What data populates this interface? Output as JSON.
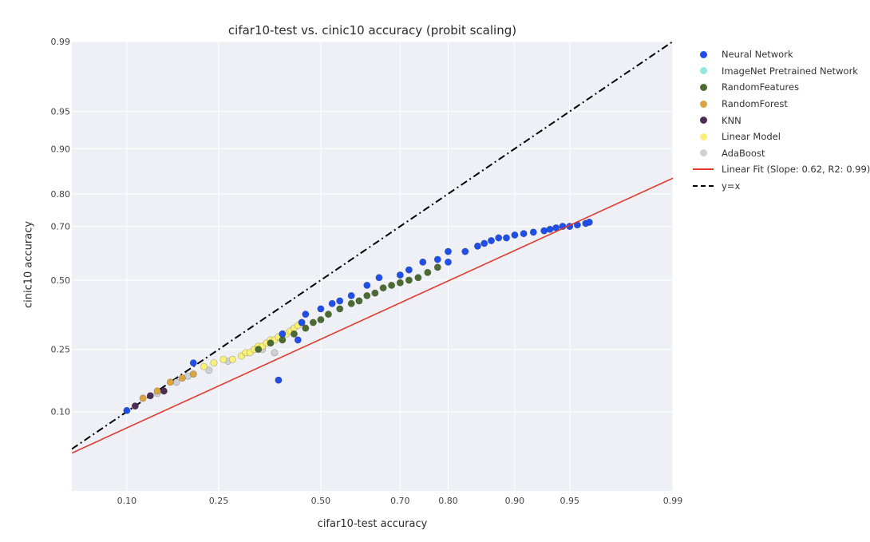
{
  "chart_data": {
    "type": "scatter",
    "title": "cifar10-test vs. cinic10 accuracy (probit scaling)",
    "xlabel": "cifar10-test accuracy",
    "ylabel": "cinic10 accuracy",
    "scale": "probit",
    "xlim": [
      0.05,
      0.99
    ],
    "ylim": [
      0.02,
      0.99
    ],
    "x_ticks": [
      0.1,
      0.25,
      0.5,
      0.7,
      0.8,
      0.9,
      0.95,
      0.99
    ],
    "x_tick_labels": [
      "0.10",
      "0.25",
      "0.50",
      "0.70",
      "0.80",
      "0.90",
      "0.95",
      "0.99"
    ],
    "y_ticks": [
      0.1,
      0.25,
      0.5,
      0.7,
      0.8,
      0.9,
      0.95,
      0.99
    ],
    "y_tick_labels": [
      "0.10",
      "0.25",
      "0.50",
      "0.70",
      "0.80",
      "0.90",
      "0.95",
      "0.99"
    ],
    "grid": true,
    "legend_position": "right",
    "series": [
      {
        "name": "Neural Network",
        "color": "#1f4fe8",
        "marker": "circle",
        "points": [
          [
            0.1,
            0.102
          ],
          [
            0.2,
            0.21
          ],
          [
            0.39,
            0.165
          ],
          [
            0.4,
            0.3
          ],
          [
            0.44,
            0.28
          ],
          [
            0.45,
            0.34
          ],
          [
            0.46,
            0.37
          ],
          [
            0.5,
            0.39
          ],
          [
            0.53,
            0.41
          ],
          [
            0.55,
            0.42
          ],
          [
            0.58,
            0.44
          ],
          [
            0.62,
            0.48
          ],
          [
            0.65,
            0.51
          ],
          [
            0.7,
            0.52
          ],
          [
            0.72,
            0.54
          ],
          [
            0.75,
            0.57
          ],
          [
            0.78,
            0.58
          ],
          [
            0.8,
            0.57
          ],
          [
            0.8,
            0.61
          ],
          [
            0.83,
            0.61
          ],
          [
            0.85,
            0.63
          ],
          [
            0.86,
            0.64
          ],
          [
            0.87,
            0.65
          ],
          [
            0.88,
            0.66
          ],
          [
            0.89,
            0.66
          ],
          [
            0.9,
            0.67
          ],
          [
            0.91,
            0.675
          ],
          [
            0.92,
            0.68
          ],
          [
            0.93,
            0.685
          ],
          [
            0.935,
            0.69
          ],
          [
            0.94,
            0.695
          ],
          [
            0.945,
            0.7
          ],
          [
            0.95,
            0.7
          ],
          [
            0.955,
            0.705
          ],
          [
            0.96,
            0.71
          ],
          [
            0.962,
            0.714
          ]
        ]
      },
      {
        "name": "ImageNet Pretrained Network",
        "color": "#93e8dc",
        "marker": "circle",
        "points": []
      },
      {
        "name": "RandomFeatures",
        "color": "#4a6b32",
        "marker": "circle",
        "points": [
          [
            0.34,
            0.25
          ],
          [
            0.37,
            0.27
          ],
          [
            0.4,
            0.28
          ],
          [
            0.43,
            0.3
          ],
          [
            0.46,
            0.32
          ],
          [
            0.48,
            0.34
          ],
          [
            0.5,
            0.35
          ],
          [
            0.52,
            0.37
          ],
          [
            0.55,
            0.39
          ],
          [
            0.58,
            0.41
          ],
          [
            0.6,
            0.42
          ],
          [
            0.62,
            0.44
          ],
          [
            0.64,
            0.45
          ],
          [
            0.66,
            0.47
          ],
          [
            0.68,
            0.48
          ],
          [
            0.7,
            0.49
          ],
          [
            0.72,
            0.5
          ],
          [
            0.74,
            0.51
          ],
          [
            0.76,
            0.53
          ],
          [
            0.78,
            0.55
          ]
        ]
      },
      {
        "name": "RandomForest",
        "color": "#d9a441",
        "marker": "circle",
        "points": [
          [
            0.12,
            0.125
          ],
          [
            0.14,
            0.14
          ],
          [
            0.16,
            0.16
          ],
          [
            0.18,
            0.17
          ],
          [
            0.2,
            0.18
          ]
        ]
      },
      {
        "name": "KNN",
        "color": "#4b2d57",
        "marker": "circle",
        "points": [
          [
            0.11,
            0.11
          ],
          [
            0.13,
            0.13
          ],
          [
            0.15,
            0.14
          ]
        ]
      },
      {
        "name": "Linear Model",
        "color": "#f8f07a",
        "marker": "circle",
        "points": [
          [
            0.22,
            0.2
          ],
          [
            0.24,
            0.21
          ],
          [
            0.26,
            0.22
          ],
          [
            0.28,
            0.22
          ],
          [
            0.3,
            0.23
          ],
          [
            0.31,
            0.24
          ],
          [
            0.32,
            0.24
          ],
          [
            0.33,
            0.25
          ],
          [
            0.34,
            0.26
          ],
          [
            0.35,
            0.26
          ],
          [
            0.36,
            0.27
          ],
          [
            0.37,
            0.28
          ],
          [
            0.38,
            0.28
          ],
          [
            0.39,
            0.29
          ],
          [
            0.4,
            0.3
          ],
          [
            0.41,
            0.3
          ],
          [
            0.42,
            0.31
          ],
          [
            0.43,
            0.32
          ],
          [
            0.44,
            0.33
          ],
          [
            0.45,
            0.34
          ]
        ]
      },
      {
        "name": "AdaBoost",
        "color": "#cdd1d6",
        "marker": "circle",
        "points": [
          [
            0.14,
            0.135
          ],
          [
            0.17,
            0.16
          ],
          [
            0.19,
            0.175
          ],
          [
            0.23,
            0.19
          ],
          [
            0.27,
            0.215
          ],
          [
            0.35,
            0.25
          ],
          [
            0.38,
            0.24
          ]
        ]
      },
      {
        "name": "Linear Fit (Slope: 0.62, R2: 0.99)",
        "color": "#e03a2f",
        "marker": "line",
        "points": [
          [
            0.05,
            0.046
          ],
          [
            0.99,
            0.84
          ]
        ]
      },
      {
        "name": "y=x",
        "color": "#000000",
        "marker": "dashdot-line",
        "points": [
          [
            0.05,
            0.05
          ],
          [
            0.99,
            0.99
          ]
        ]
      }
    ]
  }
}
